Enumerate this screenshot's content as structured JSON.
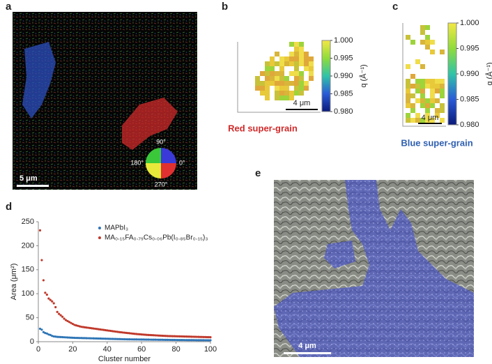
{
  "panels": {
    "a": {
      "label": "a",
      "scale_bar": "5 μm",
      "wheel": [
        "90°",
        "180°",
        "0°",
        "270°"
      ]
    },
    "b": {
      "label": "b",
      "scale_bar": "4 μm",
      "caption": "Red super-grain",
      "colorbar": {
        "label": "q (Å⁻¹)",
        "lim": [
          0.98,
          1.0
        ],
        "ticks": [
          {
            "value": 0.98,
            "label": "0.980"
          },
          {
            "value": 0.985,
            "label": "0.985"
          },
          {
            "value": 0.99,
            "label": "0.990"
          },
          {
            "value": 0.995,
            "label": "0.995"
          },
          {
            "value": 1.0,
            "label": "1.000"
          }
        ]
      }
    },
    "c": {
      "label": "c",
      "scale_bar": "4 μm",
      "caption": "Blue super-grain",
      "colorbar": {
        "label": "q (Å⁻¹)",
        "lim": [
          0.98,
          1.0
        ],
        "ticks": [
          {
            "value": 0.98,
            "label": "0.980"
          },
          {
            "value": 0.985,
            "label": "0.985"
          },
          {
            "value": 0.99,
            "label": "0.990"
          },
          {
            "value": 0.995,
            "label": "0.995"
          },
          {
            "value": 1.0,
            "label": "1.000"
          }
        ]
      }
    },
    "d": {
      "label": "d"
    },
    "e": {
      "label": "e",
      "scale_bar": "4 μm"
    }
  },
  "chart_data": {
    "type": "scatter",
    "x_label": "Cluster number",
    "y_label": "Area (μm²)",
    "xlim": [
      0,
      100
    ],
    "xticks": [
      0,
      20,
      40,
      60,
      80,
      100
    ],
    "ylim": [
      0,
      250
    ],
    "yticks": [
      0,
      50,
      100,
      150,
      200,
      250
    ],
    "x": [
      1,
      2,
      3,
      4,
      5,
      6,
      7,
      8,
      9,
      10,
      11,
      12,
      13,
      14,
      15,
      16,
      17,
      18,
      19,
      20,
      21,
      22,
      23,
      24,
      25,
      26,
      27,
      28,
      29,
      30,
      31,
      32,
      33,
      34,
      35,
      36,
      37,
      38,
      39,
      40,
      41,
      42,
      43,
      44,
      45,
      46,
      47,
      48,
      49,
      50,
      51,
      52,
      53,
      54,
      55,
      56,
      57,
      58,
      59,
      60,
      61,
      62,
      63,
      64,
      65,
      66,
      67,
      68,
      69,
      70,
      71,
      72,
      73,
      74,
      75,
      76,
      77,
      78,
      79,
      80,
      81,
      82,
      83,
      84,
      85,
      86,
      87,
      88,
      89,
      90,
      91,
      92,
      93,
      94,
      95,
      96,
      97,
      98,
      99,
      100
    ],
    "series": [
      {
        "name": "MAPbI₃",
        "color": "#2e75b6",
        "values": [
          27,
          25,
          20,
          18,
          17,
          15,
          14,
          12,
          11,
          10.5,
          10,
          9.8,
          9.6,
          9.4,
          9.2,
          9,
          8.8,
          8.6,
          8.4,
          8.2,
          8,
          7.9,
          7.8,
          7.7,
          7.6,
          7.5,
          7.4,
          7.3,
          7.2,
          7.1,
          7,
          6.9,
          6.8,
          6.7,
          6.6,
          6.5,
          6.4,
          6.3,
          6.2,
          6.1,
          6,
          5.9,
          5.8,
          5.7,
          5.6,
          5.5,
          5.4,
          5.3,
          5.2,
          5.1,
          5,
          4.95,
          4.9,
          4.85,
          4.8,
          4.75,
          4.7,
          4.65,
          4.6,
          4.55,
          4.5,
          4.45,
          4.4,
          4.35,
          4.3,
          4.25,
          4.2,
          4.15,
          4.1,
          4.05,
          4,
          3.95,
          3.9,
          3.85,
          3.8,
          3.75,
          3.7,
          3.65,
          3.6,
          3.55,
          3.5,
          3.47,
          3.44,
          3.41,
          3.38,
          3.35,
          3.32,
          3.29,
          3.26,
          3.23,
          3.2,
          3.17,
          3.14,
          3.11,
          3.08,
          3.05,
          3.02,
          3,
          2.98,
          2.96
        ]
      },
      {
        "name": "MA₀.₁₅FA₀.₇₉Cs₀.₀₆Pb(I₀.₈₅Br₀.₁₅)₃",
        "color": "#c0392b",
        "values": [
          232,
          170,
          128,
          102,
          98,
          90,
          87,
          84,
          80,
          72,
          62,
          58,
          55,
          52,
          48,
          45,
          43,
          41,
          39,
          37,
          35,
          34,
          33,
          32,
          31,
          30.5,
          30,
          29.5,
          29,
          28.5,
          28,
          27.5,
          27,
          26.5,
          26,
          25.5,
          25,
          24.5,
          24,
          23.5,
          23,
          22.5,
          22,
          21.5,
          21,
          20.5,
          20,
          19.6,
          19.2,
          18.8,
          18.4,
          18,
          17.6,
          17.2,
          16.8,
          16.4,
          16,
          15.7,
          15.4,
          15.1,
          14.8,
          14.5,
          14.2,
          14,
          13.8,
          13.6,
          13.4,
          13.2,
          13,
          12.8,
          12.6,
          12.4,
          12.2,
          12,
          11.8,
          11.7,
          11.6,
          11.5,
          11.4,
          11.3,
          11.2,
          11.1,
          11,
          10.9,
          10.8,
          10.7,
          10.6,
          10.5,
          10.4,
          10.3,
          10.2,
          10.1,
          10,
          9.9,
          9.8,
          9.7,
          9.6,
          9.5,
          9.4,
          9.3
        ]
      }
    ]
  }
}
